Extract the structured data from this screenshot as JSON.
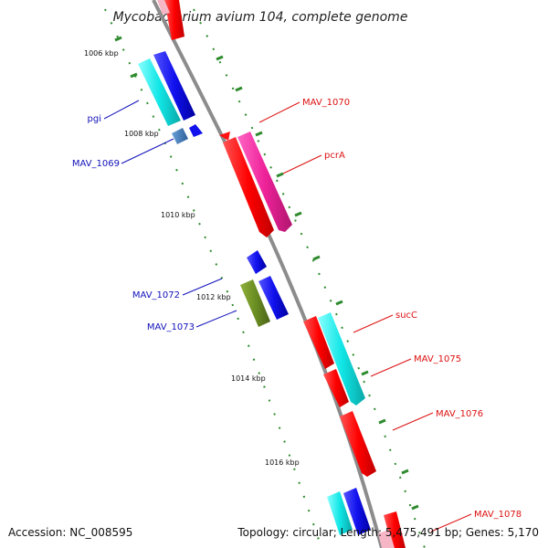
{
  "title": "Mycobacterium avium 104, complete genome",
  "footer": {
    "accession": "Accession: NC_008595",
    "info": "Topology: circular; Length: 5,475,491 bp; Genes: 5,170"
  },
  "colors": {
    "backbone": "#8c8c8c",
    "tick": "#2e8b2e",
    "forward_label": "#dd1111",
    "reverse_label": "#1111bb",
    "red": "#ff1111",
    "magenta": "#ee2299",
    "cyan": "#11eeee",
    "blue": "#1111ee",
    "steelblue": "#3377bb",
    "olive": "#6b8e23"
  },
  "ticks": [
    "1006 kbp",
    "1008 kbp",
    "1010 kbp",
    "1012 kbp",
    "1014 kbp",
    "1016 kbp"
  ],
  "genes": [
    {
      "label": "pgi",
      "strand": "reverse",
      "color": "cyan"
    },
    {
      "label": "MAV_1069",
      "strand": "reverse",
      "color": "steelblue"
    },
    {
      "label": "MAV_1070",
      "strand": "forward",
      "color": "red"
    },
    {
      "label": "pcrA",
      "strand": "forward",
      "color": "magenta"
    },
    {
      "label": "MAV_1072",
      "strand": "reverse",
      "color": "blue"
    },
    {
      "label": "MAV_1073",
      "strand": "reverse",
      "color": "olive"
    },
    {
      "label": "sucC",
      "strand": "forward",
      "color": "cyan"
    },
    {
      "label": "MAV_1075",
      "strand": "forward",
      "color": "red"
    },
    {
      "label": "MAV_1076",
      "strand": "forward",
      "color": "red"
    },
    {
      "label": "MAV_1078",
      "strand": "forward",
      "color": "red"
    }
  ]
}
